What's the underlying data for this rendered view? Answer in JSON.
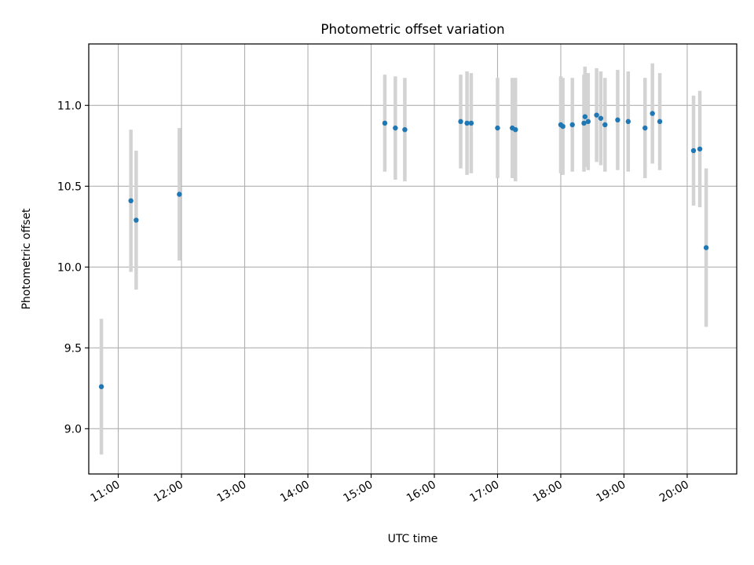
{
  "chart_data": {
    "type": "scatter",
    "title": "Photometric offset variation",
    "xlabel": "UTC time",
    "ylabel": "Photometric offset",
    "xlim": [
      "10:32",
      "20:47"
    ],
    "ylim": [
      8.72,
      11.38
    ],
    "x_ticks": [
      "11:00",
      "12:00",
      "13:00",
      "14:00",
      "15:00",
      "16:00",
      "17:00",
      "18:00",
      "19:00",
      "20:00"
    ],
    "y_ticks": [
      9.0,
      9.5,
      10.0,
      10.5,
      11.0
    ],
    "y_tick_labels": [
      "9.0",
      "9.5",
      "10.0",
      "10.5",
      "11.0"
    ],
    "grid": true,
    "colors": {
      "points": "#1f77b4",
      "error_bars": "#d3d3d3",
      "grid": "#b0b0b0"
    },
    "series": [
      {
        "x": [
          "10:44",
          "11:12",
          "11:17",
          "11:58",
          "15:13",
          "15:23",
          "15:32",
          "16:25",
          "16:31",
          "16:35",
          "17:00",
          "17:14",
          "17:17",
          "18:00",
          "18:02",
          "18:11",
          "18:22",
          "18:23",
          "18:26",
          "18:34",
          "18:38",
          "18:42",
          "18:54",
          "19:04",
          "19:20",
          "19:27",
          "19:34",
          "20:06",
          "20:12",
          "20:18"
        ],
        "y": [
          9.26,
          10.41,
          10.29,
          10.45,
          10.89,
          10.86,
          10.85,
          10.9,
          10.89,
          10.89,
          10.86,
          10.86,
          10.85,
          10.88,
          10.87,
          10.88,
          10.89,
          10.93,
          10.9,
          10.94,
          10.92,
          10.88,
          10.91,
          10.9,
          10.86,
          10.95,
          10.9,
          10.72,
          10.73,
          10.12
        ],
        "error": [
          0.42,
          0.44,
          0.43,
          0.41,
          0.3,
          0.32,
          0.32,
          0.29,
          0.32,
          0.31,
          0.31,
          0.31,
          0.32,
          0.3,
          0.3,
          0.29,
          0.3,
          0.31,
          0.3,
          0.29,
          0.29,
          0.29,
          0.31,
          0.31,
          0.31,
          0.31,
          0.3,
          0.34,
          0.36,
          0.49
        ]
      }
    ]
  }
}
